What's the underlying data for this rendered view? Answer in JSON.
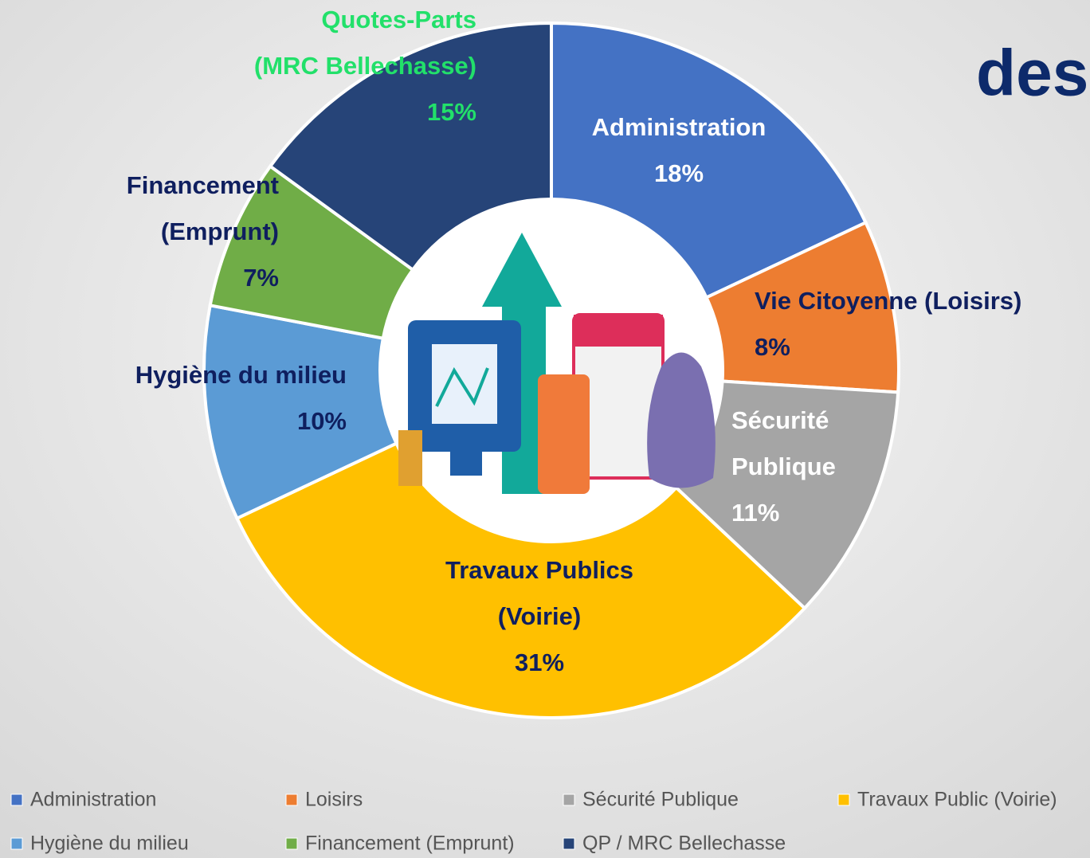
{
  "chart_data": {
    "type": "donut",
    "title": "des",
    "categories": [
      "Administration",
      "Loisirs",
      "Sécurité Publique",
      "Travaux Public (Voirie)",
      "Hygiène du milieu",
      "Financement (Emprunt)",
      "QP / MRC Bellechasse"
    ],
    "values": [
      18,
      8,
      11,
      31,
      10,
      7,
      15
    ],
    "value_labels": [
      "18%",
      "8%",
      "11%",
      "31%",
      "10%",
      "7%",
      "15%"
    ],
    "data_labels": [
      [
        "Administration"
      ],
      [
        "Vie Citoyenne (Loisirs)"
      ],
      [
        "Sécurité",
        "Publique"
      ],
      [
        "Travaux Publics",
        "(Voirie)"
      ],
      [
        "Hygiène du milieu"
      ],
      [
        "Financement",
        "(Emprunt)"
      ],
      [
        "Quotes-Parts",
        "(MRC Bellechasse)"
      ]
    ],
    "colors": [
      "#4472c4",
      "#ed7d31",
      "#a5a5a5",
      "#ffc000",
      "#5b9bd5",
      "#70ad47",
      "#264478"
    ],
    "label_colors": [
      "#ffffff",
      "#0f1f5f",
      "#ffffff",
      "#0f1f5f",
      "#0f1f5f",
      "#0f1f5f",
      "#22e06a"
    ],
    "legend": "bottom"
  }
}
